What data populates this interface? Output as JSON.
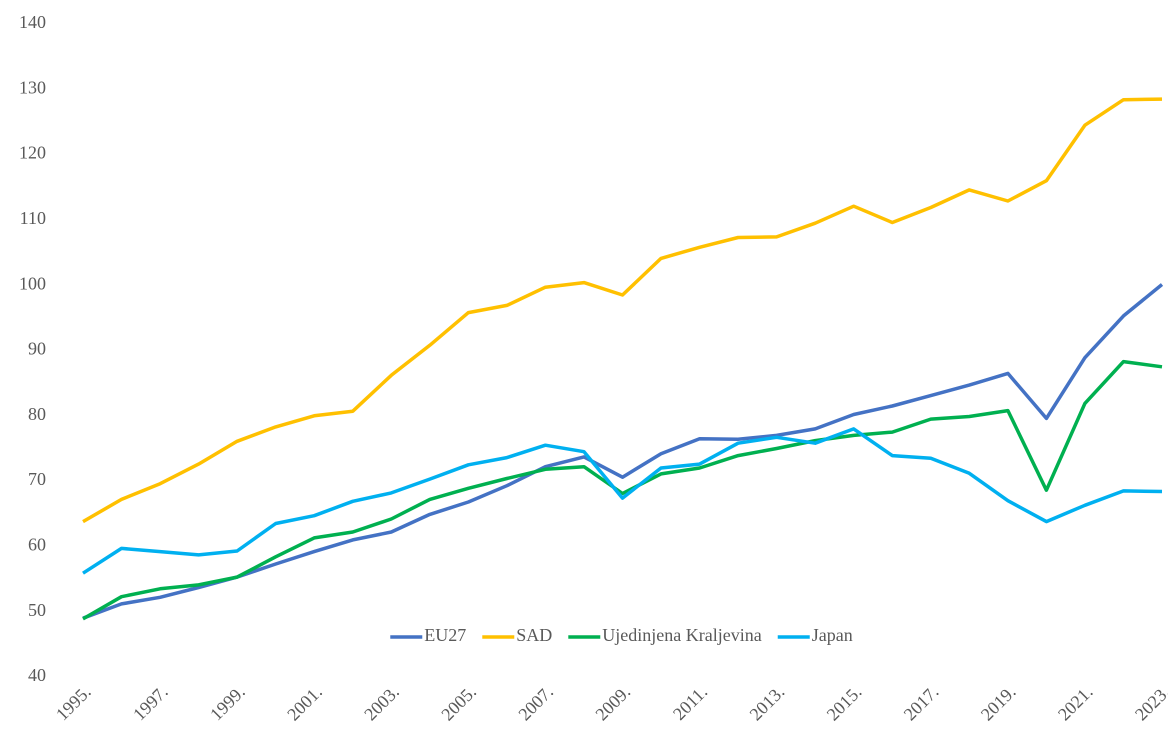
{
  "chart_data": {
    "type": "line",
    "categories": [
      "1995.",
      null,
      "1997.",
      null,
      "1999.",
      null,
      "2001.",
      null,
      "2003.",
      null,
      "2005.",
      null,
      "2007.",
      null,
      "2009.",
      null,
      "2011.",
      null,
      "2013.",
      null,
      "2015.",
      null,
      "2017.",
      null,
      "2019.",
      null,
      "2021.",
      null,
      "2023."
    ],
    "series": [
      {
        "name": "EU27",
        "color": "#4472c4",
        "values": [
          49,
          51.2,
          52.2,
          53.7,
          55.3,
          57.3,
          59.2,
          61.0,
          62.2,
          64.9,
          66.8,
          69.3,
          72.2,
          73.7,
          70.6,
          74.2,
          76.5,
          76.4,
          77.0,
          78.0,
          80.2,
          81.5,
          83.1,
          84.7,
          86.5,
          79.6,
          88.9,
          95.3,
          100.1
        ]
      },
      {
        "name": "SAD",
        "color": "#ffc000",
        "values": [
          63.8,
          67.2,
          69.6,
          72.6,
          76.1,
          78.3,
          80.0,
          80.7,
          86.2,
          90.8,
          95.8,
          96.9,
          99.7,
          100.4,
          98.5,
          104.1,
          105.8,
          107.3,
          107.4,
          109.5,
          112.1,
          109.6,
          111.9,
          114.6,
          112.9,
          116.0,
          124.5,
          128.4,
          128.5
        ]
      },
      {
        "name": "Ujedinjena Kraljevina",
        "color": "#00b050",
        "values": [
          48.9,
          52.3,
          53.5,
          54.1,
          55.3,
          58.4,
          61.3,
          62.2,
          64.2,
          67.2,
          68.9,
          70.4,
          71.8,
          72.2,
          68.1,
          71.1,
          72.0,
          73.9,
          75.0,
          76.2,
          77.0,
          77.5,
          79.5,
          79.9,
          80.8,
          68.6,
          81.9,
          88.3,
          87.5
        ]
      },
      {
        "name": "Japan",
        "color": "#00b0f0",
        "values": [
          55.9,
          59.7,
          59.2,
          58.7,
          59.3,
          63.5,
          64.7,
          66.9,
          68.2,
          70.3,
          72.5,
          73.6,
          75.5,
          74.5,
          67.4,
          72.0,
          72.6,
          75.8,
          76.7,
          75.8,
          78.0,
          73.9,
          73.5,
          71.2,
          67.0,
          63.8,
          66.3,
          68.5,
          68.4
        ]
      }
    ],
    "ylim": [
      40,
      140
    ],
    "yticks": [
      40,
      50,
      60,
      70,
      80,
      90,
      100,
      110,
      120,
      130,
      140
    ],
    "grid": false,
    "legend": "bottom"
  }
}
